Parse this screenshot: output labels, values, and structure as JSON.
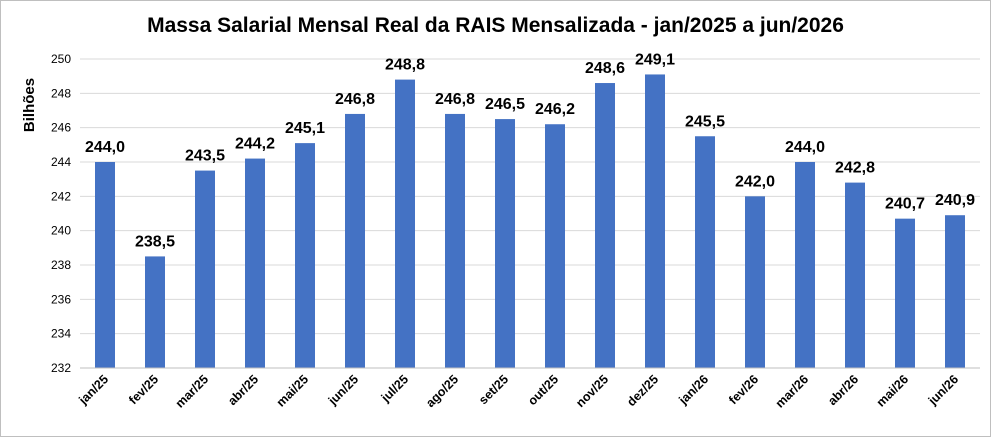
{
  "chart_data": {
    "type": "bar",
    "title": "Massa Salarial Mensal Real da RAIS Mensalizada - jan/2025 a jun/2026",
    "xlabel": "",
    "ylabel": "Bilhões",
    "ylim": [
      232,
      250
    ],
    "ytick_step": 2,
    "ytick_labels": [
      "232",
      "234",
      "236",
      "238",
      "240",
      "242",
      "244",
      "246",
      "248",
      "250"
    ],
    "grid": true,
    "legend": "none",
    "bar_color": "#4472C4",
    "grid_color": "#d9d9d9",
    "categories": [
      "jan/25",
      "fev/25",
      "mar/25",
      "abr/25",
      "mai/25",
      "jun/25",
      "jul/25",
      "ago/25",
      "set/25",
      "out/25",
      "nov/25",
      "dez/25",
      "jan/26",
      "fev/26",
      "mar/26",
      "abr/26",
      "mai/26",
      "jun/26"
    ],
    "values": [
      244.0,
      238.5,
      243.5,
      244.2,
      245.1,
      246.8,
      248.8,
      246.8,
      246.5,
      246.2,
      248.6,
      249.1,
      245.5,
      242.0,
      244.0,
      242.8,
      240.7,
      240.9
    ],
    "data_labels": [
      "244,0",
      "238,5",
      "243,5",
      "244,2",
      "245,1",
      "246,8",
      "248,8",
      "246,8",
      "246,5",
      "246,2",
      "248,6",
      "249,1",
      "245,5",
      "242,0",
      "244,0",
      "242,8",
      "240,7",
      "240,9"
    ]
  }
}
